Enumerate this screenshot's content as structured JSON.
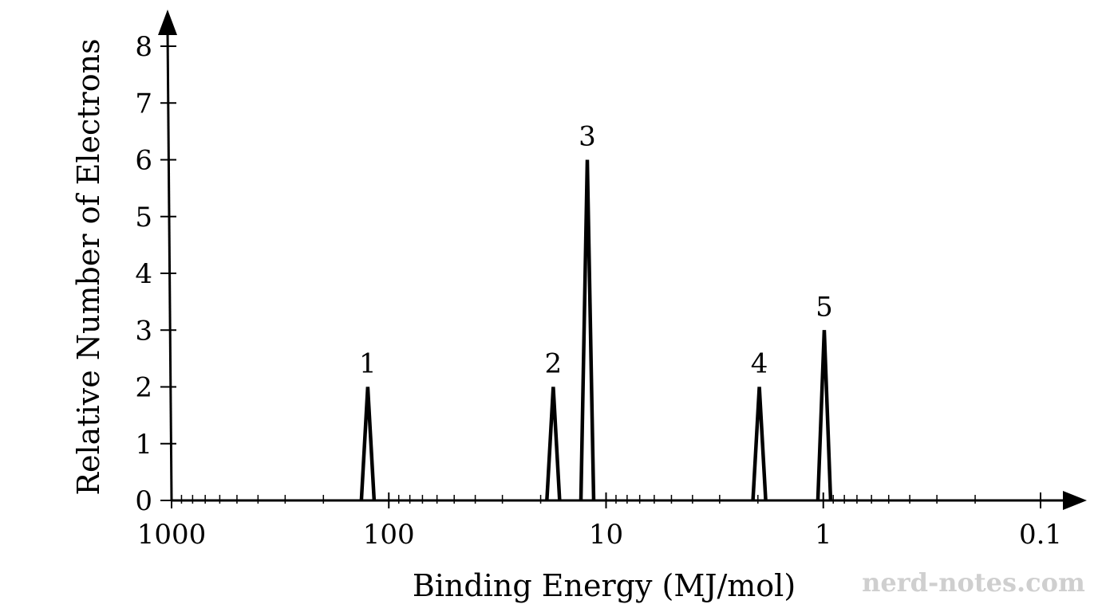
{
  "chart_data": {
    "type": "line",
    "title": "",
    "xlabel": "Binding Energy (MJ/mol)",
    "ylabel": "Relative Number of Electrons",
    "x_scale": "log",
    "x_reversed": true,
    "xlim": [
      1000,
      0.1
    ],
    "ylim": [
      0,
      8
    ],
    "x_ticks": [
      1000,
      100,
      10,
      1,
      0.1
    ],
    "x_tick_labels": [
      "1000",
      "100",
      "10",
      "1",
      "0.1"
    ],
    "y_ticks": [
      0,
      1,
      2,
      3,
      4,
      5,
      6,
      7,
      8
    ],
    "y_tick_labels": [
      "0",
      "1",
      "2",
      "3",
      "4",
      "5",
      "6",
      "7",
      "8"
    ],
    "grid": false,
    "peaks": [
      {
        "label": "1",
        "binding_energy": 125,
        "relative_electrons": 2
      },
      {
        "label": "2",
        "binding_energy": 17.5,
        "relative_electrons": 2
      },
      {
        "label": "3",
        "binding_energy": 12.2,
        "relative_electrons": 6
      },
      {
        "label": "4",
        "binding_energy": 1.97,
        "relative_electrons": 2
      },
      {
        "label": "5",
        "binding_energy": 0.99,
        "relative_electrons": 3
      }
    ]
  },
  "watermark": "nerd-notes.com"
}
